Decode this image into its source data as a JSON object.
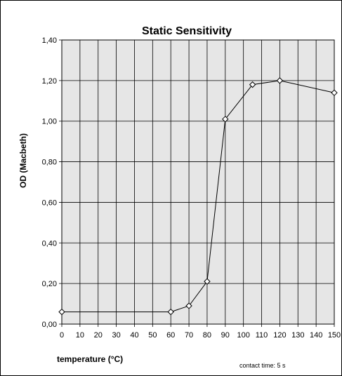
{
  "chart_data": {
    "type": "line",
    "title": "Static Sensitivity",
    "xlabel": "temperature (°C)",
    "ylabel": "OD (Macbeth)",
    "note": "contact time: 5 s",
    "xlim": [
      0,
      150
    ],
    "ylim": [
      0,
      1.4
    ],
    "x_ticks": [
      "0",
      "10",
      "20",
      "30",
      "40",
      "50",
      "60",
      "70",
      "80",
      "90",
      "100",
      "110",
      "120",
      "130",
      "140",
      "150"
    ],
    "y_ticks": [
      "0,00",
      "0,20",
      "0,40",
      "0,60",
      "0,80",
      "1,00",
      "1,20",
      "1,40"
    ],
    "grid": true,
    "plot_background": "#e6e6e6",
    "line_color": "#000000",
    "marker": "diamond-open",
    "x": [
      0,
      60,
      70,
      80,
      90,
      105,
      120,
      150
    ],
    "y": [
      0.06,
      0.06,
      0.09,
      0.21,
      1.01,
      1.18,
      1.2,
      1.14
    ]
  }
}
